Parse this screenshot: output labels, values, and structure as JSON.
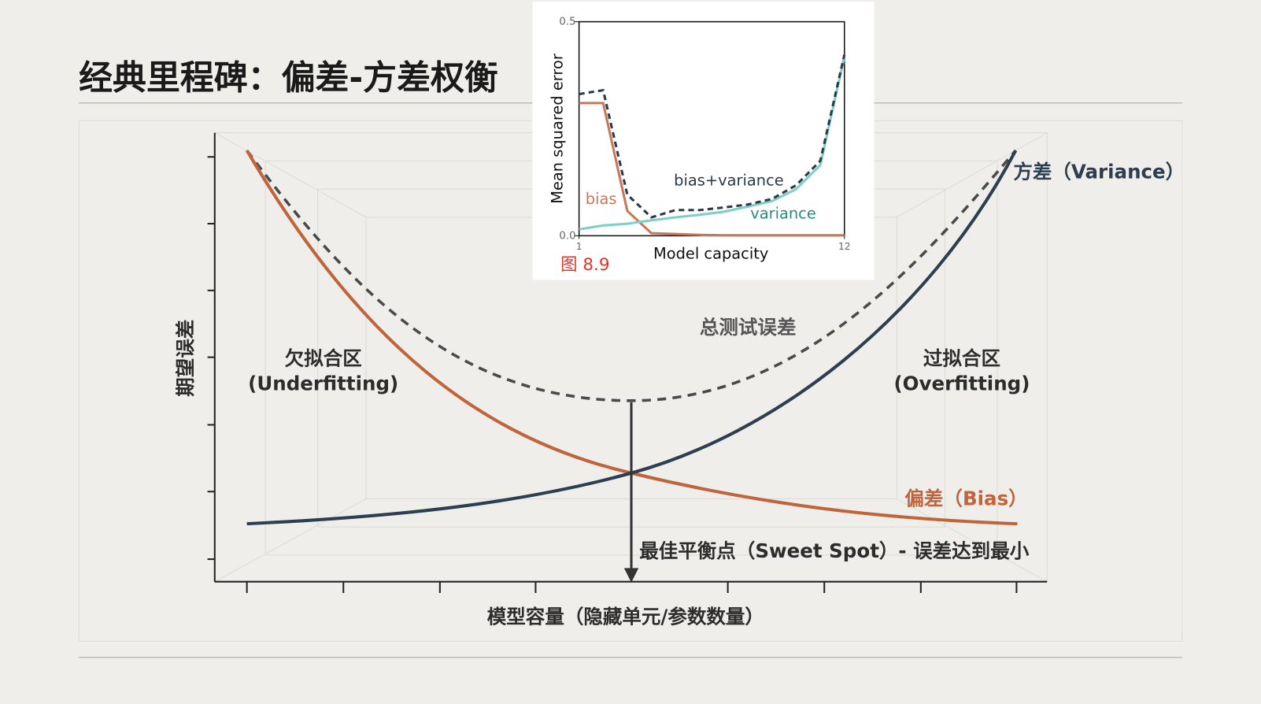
{
  "slide": {
    "title": "经典里程碑：偏差-方差权衡",
    "diagram": {
      "y_label": "期望误差",
      "x_label": "模型容量（隐藏单元/参数数量）",
      "underfit_title": "欠拟合区",
      "underfit_sub": "(Underfitting)",
      "overfit_title": "过拟合区",
      "overfit_sub": "(Overfitting)",
      "total_label": "总测试误差",
      "variance_label": "方差（Variance）",
      "bias_label": "偏差（Bias）",
      "sweet_spot": "最佳平衡点（Sweet Spot）- 误差达到最小"
    }
  },
  "chart_data": {
    "type": "line",
    "caption": "图 8.9",
    "x_label": "Model capacity",
    "y_label": "Mean squared error",
    "x": [
      1,
      2,
      3,
      4,
      5,
      6,
      7,
      8,
      9,
      10,
      11,
      12
    ],
    "xlim": [
      1,
      12
    ],
    "xticks": [
      1,
      12
    ],
    "ylim": [
      0,
      0.5
    ],
    "yticks": [
      {
        "value": 0,
        "label": "0.0"
      },
      0.5
    ],
    "series": [
      {
        "name": "bias",
        "color": "#c8785a",
        "linestyle": "solid",
        "values": [
          0.31,
          0.31,
          0.058,
          0.006,
          0.004,
          0.002,
          0.001,
          0.001,
          0.001,
          0.001,
          0.001,
          0.001
        ]
      },
      {
        "name": "variance",
        "color": "#7fcfc6",
        "linestyle": "solid",
        "values": [
          0.015,
          0.024,
          0.028,
          0.036,
          0.043,
          0.049,
          0.056,
          0.068,
          0.081,
          0.109,
          0.165,
          0.419
        ]
      },
      {
        "name": "bias+variance",
        "color": "#2b3a48",
        "linestyle": "dashed",
        "values": [
          0.331,
          0.34,
          0.096,
          0.043,
          0.06,
          0.06,
          0.066,
          0.073,
          0.086,
          0.118,
          0.175,
          0.423
        ]
      }
    ]
  }
}
